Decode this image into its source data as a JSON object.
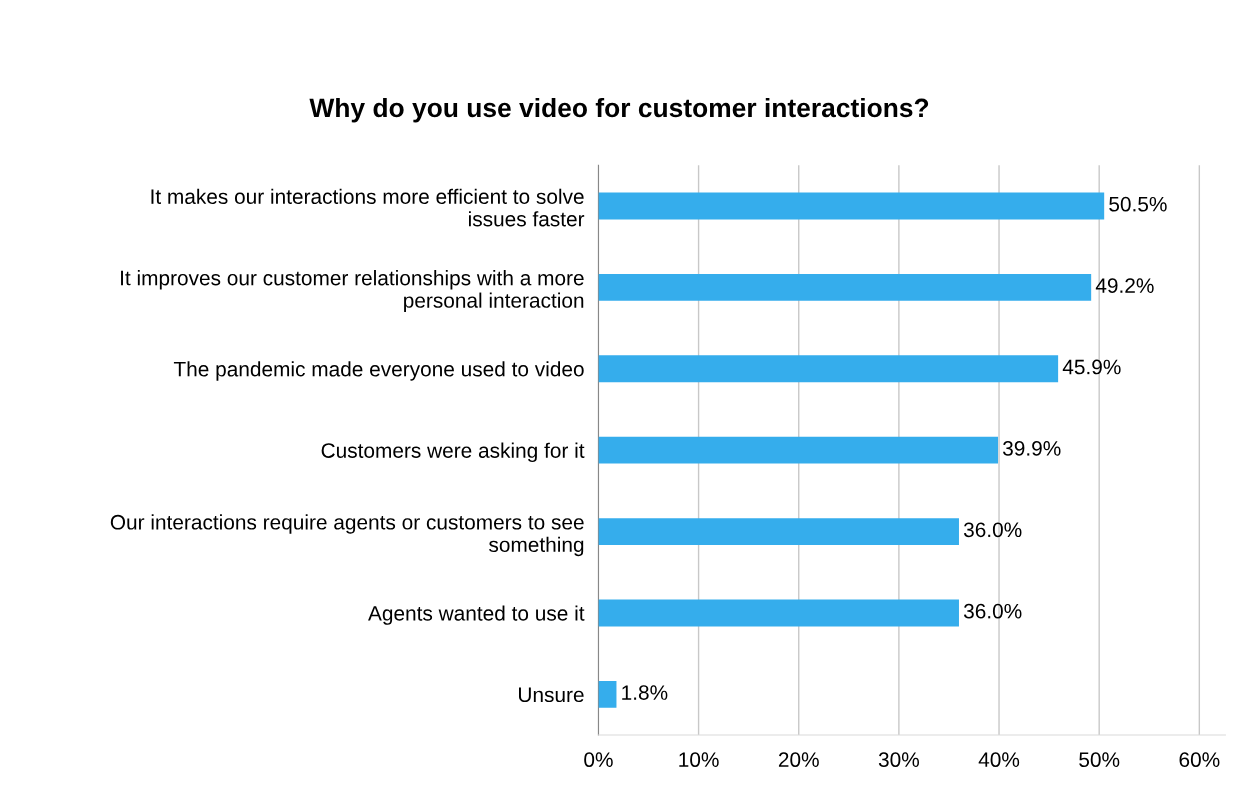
{
  "chart_data": {
    "type": "bar",
    "orientation": "horizontal",
    "title": "Why do you use video for customer interactions?",
    "categories": [
      "It makes our interactions more efficient to solve\nissues faster",
      "It improves our customer relationships with a more\npersonal interaction",
      "The pandemic made everyone used to video",
      "Customers were asking for it",
      "Our interactions require agents or customers to see\nsomething",
      "Agents wanted to use it",
      "Unsure"
    ],
    "values": [
      50.5,
      49.2,
      45.9,
      39.9,
      36.0,
      36.0,
      1.8
    ],
    "value_labels": [
      "50.5%",
      "49.2%",
      "45.9%",
      "39.9%",
      "36.0%",
      "36.0%",
      "1.8%"
    ],
    "color": "#35adec",
    "xlim": [
      0,
      62.6
    ],
    "xticks": [
      {
        "value": 0,
        "label": "0%"
      },
      {
        "value": 10,
        "label": "10%"
      },
      {
        "value": 20,
        "label": "20%"
      },
      {
        "value": 30,
        "label": "30%"
      },
      {
        "value": 40,
        "label": "40%"
      },
      {
        "value": 50,
        "label": "50%"
      },
      {
        "value": 60,
        "label": "60%"
      }
    ],
    "grid": "x"
  }
}
